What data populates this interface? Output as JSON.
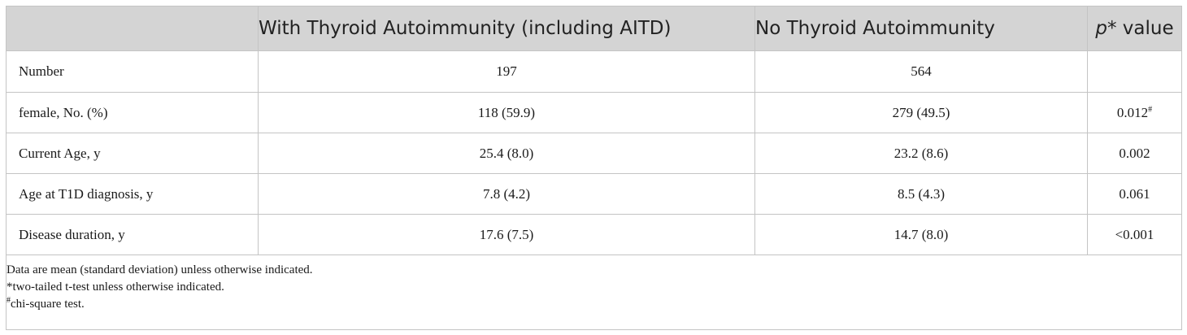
{
  "header": {
    "col_blank": "",
    "col_with": "With Thyroid Autoimmunity (including AITD)",
    "col_without": "No Thyroid Autoimmunity",
    "col_p_italic": "p",
    "col_p_rest": "* value"
  },
  "rows": [
    {
      "label": "Number",
      "with": "197",
      "without": "564",
      "p": "",
      "p_mark": ""
    },
    {
      "label": "female, No. (%)",
      "with": "118 (59.9)",
      "without": "279 (49.5)",
      "p": "0.012",
      "p_mark": "#"
    },
    {
      "label": "Current Age, y",
      "with": "25.4 (8.0)",
      "without": "23.2 (8.6)",
      "p": "0.002",
      "p_mark": ""
    },
    {
      "label": "Age at T1D diagnosis, y",
      "with": "7.8 (4.2)",
      "without": "8.5 (4.3)",
      "p": "0.061",
      "p_mark": ""
    },
    {
      "label": "Disease duration, y",
      "with": "17.6 (7.5)",
      "without": "14.7 (8.0)",
      "p": "<0.001",
      "p_mark": ""
    }
  ],
  "notes": {
    "line1": "Data are mean (standard deviation) unless otherwise indicated.",
    "line2": "*two-tailed t-test unless otherwise indicated.",
    "line3_mark": "#",
    "line3": "chi-square test."
  },
  "colors": {
    "header_bg": "#d4d4d4",
    "border": "#c4c4c4",
    "text": "#1a1a1a"
  }
}
